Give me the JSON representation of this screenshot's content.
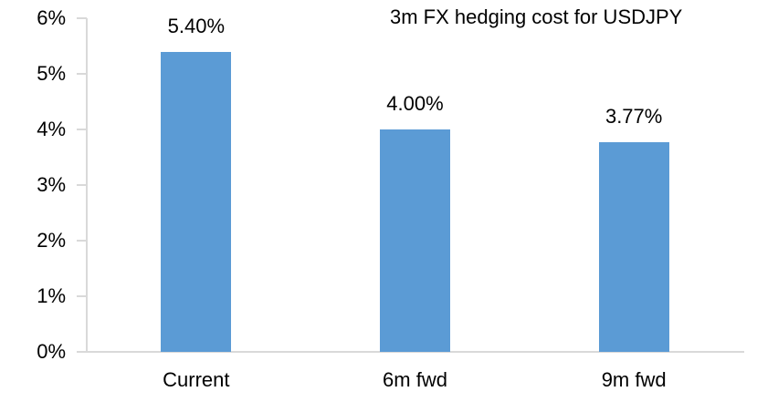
{
  "chart_data": {
    "type": "bar",
    "title": "3m FX hedging cost for USDJPY",
    "categories": [
      "Current",
      "6m fwd",
      "9m fwd"
    ],
    "values": [
      5.4,
      4.0,
      3.77
    ],
    "data_labels": [
      "5.40%",
      "4.00%",
      "3.77%"
    ],
    "y_ticks": [
      "0%",
      "1%",
      "2%",
      "3%",
      "4%",
      "5%",
      "6%"
    ],
    "ylim": [
      0,
      6
    ],
    "xlabel": "",
    "ylabel": "",
    "grid": false,
    "legend": false,
    "bar_color": "#5b9bd5",
    "axis_color": "#d9d9d9",
    "text_color": "#000000"
  }
}
